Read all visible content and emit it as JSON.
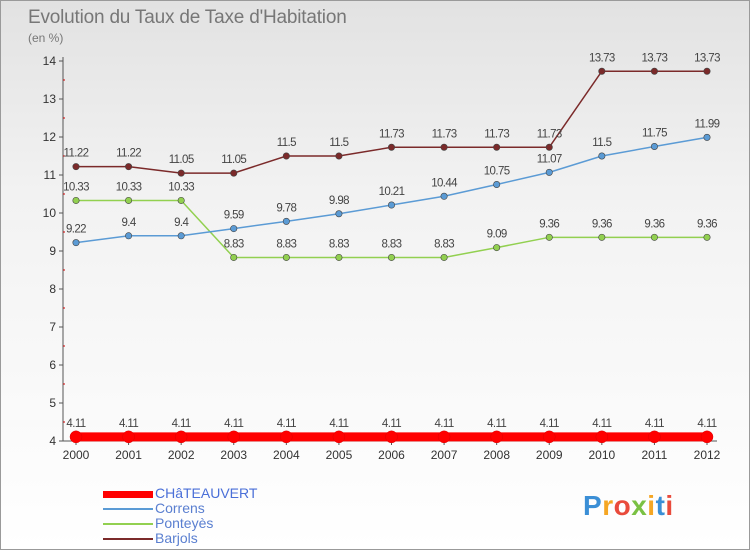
{
  "title": "Evolution du Taux de Taxe d'Habitation",
  "subtitle": "(en %)",
  "logo": "Proxiti",
  "chart_data": {
    "type": "line",
    "x": [
      2000,
      2001,
      2002,
      2003,
      2004,
      2005,
      2006,
      2007,
      2008,
      2009,
      2010,
      2011,
      2012
    ],
    "ylim": [
      4,
      14
    ],
    "yticks": [
      4,
      5,
      6,
      7,
      8,
      9,
      10,
      11,
      12,
      13,
      14
    ],
    "grid": false,
    "legend_placement": "bottom-left",
    "series": [
      {
        "name": "CHâTEAUVERT",
        "color": "#ff0000",
        "values": [
          4.11,
          4.11,
          4.11,
          4.11,
          4.11,
          4.11,
          4.11,
          4.11,
          4.11,
          4.11,
          4.11,
          4.11,
          4.11
        ],
        "labels": [
          "4.11",
          "4.11",
          "4.11",
          "4.11",
          "4.11",
          "4.11",
          "4.11",
          "4.11",
          "4.11",
          "4.11",
          "4.11",
          "4.11",
          "4.11"
        ]
      },
      {
        "name": "Correns",
        "color": "#5b9bd5",
        "values": [
          9.22,
          9.4,
          9.4,
          9.59,
          9.78,
          9.98,
          10.21,
          10.44,
          10.75,
          11.07,
          11.5,
          11.75,
          11.99
        ],
        "labels": [
          "9.22",
          "9.4",
          "9.4",
          "9.59",
          "9.78",
          "9.98",
          "10.21",
          "10.44",
          "10.75",
          "11.07",
          "11.5",
          "11.75",
          "11.99"
        ]
      },
      {
        "name": "Ponteyès",
        "color": "#92d050",
        "values": [
          10.33,
          10.33,
          10.33,
          8.83,
          8.83,
          8.83,
          8.83,
          8.83,
          9.09,
          9.36,
          9.36,
          9.36,
          9.36
        ],
        "labels": [
          "10.33",
          "10.33",
          "10.33",
          "8.83",
          "8.83",
          "8.83",
          "8.83",
          "8.83",
          "9.09",
          "9.36",
          "9.36",
          "9.36",
          "9.36"
        ]
      },
      {
        "name": "Barjols",
        "color": "#7b2a2a",
        "values": [
          11.22,
          11.22,
          11.05,
          11.05,
          11.5,
          11.5,
          11.73,
          11.73,
          11.73,
          11.73,
          13.73,
          13.73,
          13.73
        ],
        "labels": [
          "11.22",
          "11.22",
          "11.05",
          "11.05",
          "11.5",
          "11.5",
          "11.73",
          "11.73",
          "11.73",
          "11.73",
          "13.73",
          "13.73",
          "13.73"
        ]
      }
    ]
  }
}
